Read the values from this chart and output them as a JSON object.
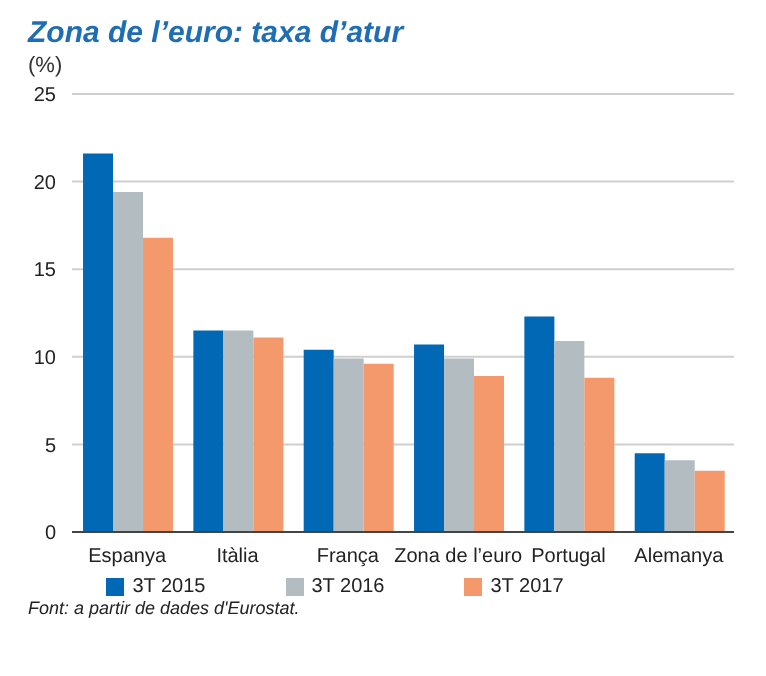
{
  "chart_data": {
    "type": "bar",
    "title": "Zona de l’euro: taxa d’atur",
    "ylabel": "(%)",
    "categories": [
      "Espanya",
      "Itàlia",
      "França",
      "Zona de l’euro",
      "Portugal",
      "Alemanya"
    ],
    "series": [
      {
        "name": "3T 2015",
        "color": "#0068b4",
        "values": [
          21.6,
          11.5,
          10.4,
          10.7,
          12.3,
          4.5
        ]
      },
      {
        "name": "3T 2016",
        "color": "#b3bcc1",
        "values": [
          19.4,
          11.5,
          9.9,
          9.9,
          10.9,
          4.1
        ]
      },
      {
        "name": "3T 2017",
        "color": "#f4996b",
        "values": [
          16.8,
          11.1,
          9.6,
          8.9,
          8.8,
          3.5
        ]
      }
    ],
    "ylim": [
      0,
      25
    ],
    "yticks": [
      0,
      5,
      10,
      15,
      20,
      25
    ],
    "grid": "y",
    "legend": "bottom",
    "annotations": [
      "Font: a partir de dades d'Eurostat."
    ]
  }
}
